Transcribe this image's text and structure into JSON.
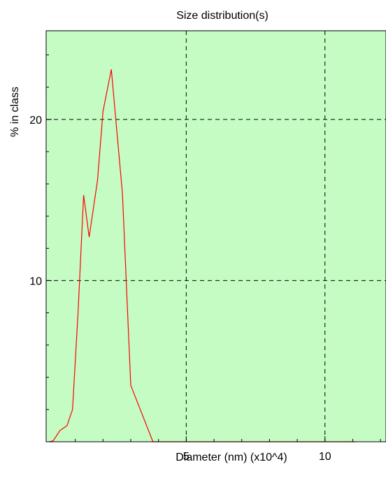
{
  "chart_data": {
    "type": "line",
    "title": "Size distribution(s)",
    "xlabel": "Diameter (nm) (x10^4)",
    "ylabel": "% in class",
    "xlim": [
      -0.05,
      12.2
    ],
    "ylim": [
      0,
      25.5
    ],
    "xticks": [
      5,
      10
    ],
    "yticks": [
      10,
      20
    ],
    "x_minor_step": 1,
    "y_minor_step": 2,
    "grid": true,
    "background_color": "#c4fcc4",
    "line_color": "#ff0000",
    "series": [
      {
        "x": [
          0.05,
          0.2,
          0.45,
          0.7,
          0.9,
          1.1,
          1.3,
          1.5,
          1.8,
          2.0,
          2.3,
          2.7,
          3.0,
          3.8,
          6.0,
          8.5,
          11.1
        ],
        "values": [
          0.0,
          0.05,
          0.7,
          1.0,
          2.0,
          8.0,
          15.3,
          12.7,
          16.2,
          20.5,
          23.1,
          15.4,
          3.5,
          0.0,
          0.0,
          0.0,
          0.0
        ]
      }
    ]
  }
}
